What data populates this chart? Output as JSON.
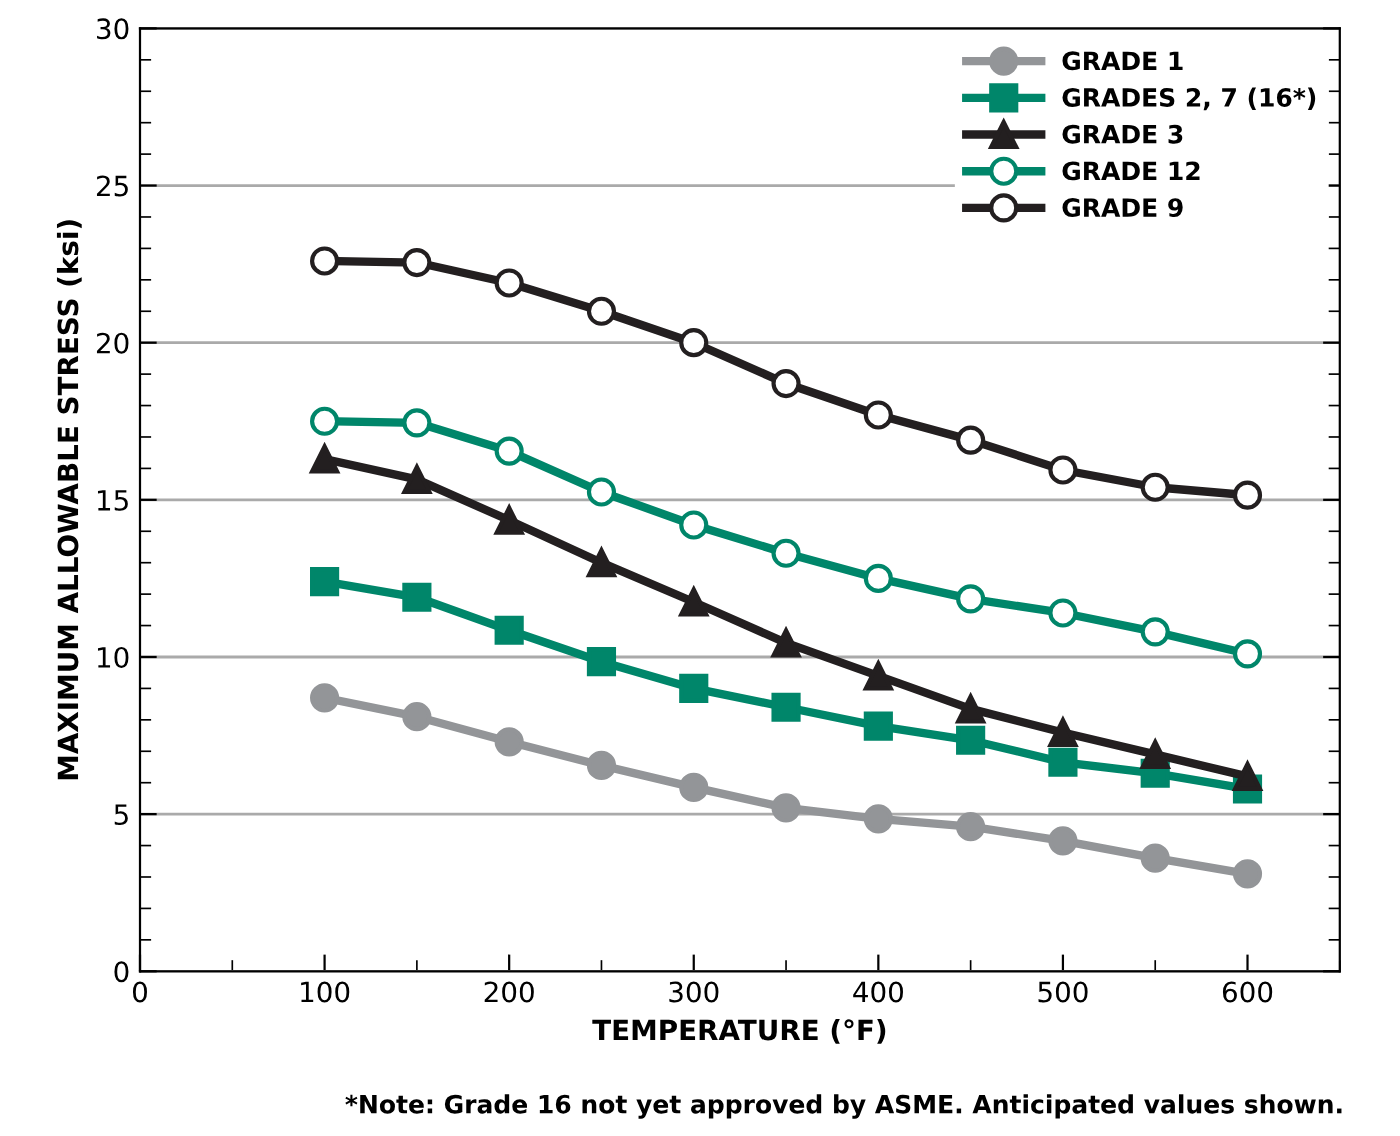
{
  "chart_data": {
    "type": "line",
    "xlabel": "TEMPERATURE (°F)",
    "ylabel": "MAXIMUM ALLOWABLE STRESS (ksi)",
    "x": [
      100,
      150,
      200,
      250,
      300,
      350,
      400,
      450,
      500,
      550,
      600
    ],
    "series": [
      {
        "name": "GRADE 1",
        "color": "#939598",
        "marker": "circle",
        "values": [
          8.7,
          8.1,
          7.3,
          6.55,
          5.85,
          5.2,
          4.85,
          4.6,
          4.15,
          3.6,
          3.1
        ]
      },
      {
        "name": "GRADES 2, 7 (16*)",
        "color": "#00866a",
        "marker": "square",
        "values": [
          12.4,
          11.9,
          10.85,
          9.85,
          9.0,
          8.4,
          7.8,
          7.35,
          6.65,
          6.3,
          5.8
        ]
      },
      {
        "name": "GRADE 3",
        "color": "#231f20",
        "marker": "triangle",
        "values": [
          16.3,
          15.65,
          14.35,
          13.0,
          11.75,
          10.45,
          9.4,
          8.35,
          7.6,
          6.9,
          6.2
        ]
      },
      {
        "name": "GRADE 12",
        "color": "#00866a",
        "marker": "circle",
        "values": [
          17.5,
          17.45,
          16.55,
          15.25,
          14.2,
          13.3,
          12.5,
          11.85,
          11.4,
          10.8,
          10.1
        ]
      },
      {
        "name": "GRADE 9",
        "color": "#231f20",
        "marker": "circle",
        "values": [
          22.6,
          22.55,
          21.9,
          21.0,
          20.0,
          18.7,
          17.7,
          16.9,
          15.95,
          15.4,
          15.15
        ]
      }
    ],
    "xlim": [
      0,
      650
    ],
    "ylim": [
      0,
      30
    ],
    "xticks": [
      0,
      100,
      200,
      300,
      400,
      500,
      600
    ],
    "yticks": [
      0,
      5,
      10,
      15,
      20,
      25,
      30
    ],
    "grid": "y",
    "legend": "top right",
    "line_style": "solid",
    "annotations": [
      "*Note: Grade 16 not yet approved by ASME. Anticipated values shown."
    ]
  }
}
